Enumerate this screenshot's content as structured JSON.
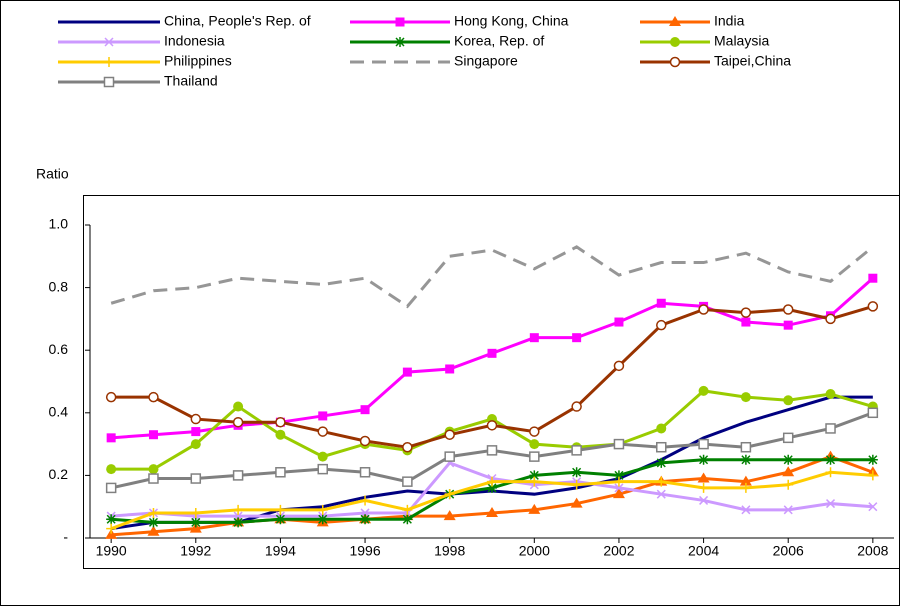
{
  "chart_data": {
    "type": "line",
    "y_label": "Ratio",
    "x": [
      1990,
      1991,
      1992,
      1993,
      1994,
      1995,
      1996,
      1997,
      1998,
      1999,
      2000,
      2001,
      2002,
      2003,
      2004,
      2005,
      2006,
      2007,
      2008
    ],
    "xlim": [
      1989.5,
      2008.5
    ],
    "xticks": [
      1990,
      1992,
      1994,
      1996,
      1998,
      2000,
      2002,
      2004,
      2006,
      2008
    ],
    "ylim": [
      0,
      1
    ],
    "yticks": [
      {
        "value": 0,
        "label": "-"
      },
      0.2,
      0.4,
      0.6,
      0.8,
      {
        "value": 1,
        "label": "1.0"
      }
    ],
    "grid": false,
    "legend": "top",
    "series": [
      {
        "name": "China, People's Rep. of",
        "color": "#000080",
        "marker": "none",
        "values": [
          0.03,
          0.05,
          0.05,
          0.05,
          0.09,
          0.1,
          0.13,
          0.15,
          0.14,
          0.15,
          0.14,
          0.16,
          0.19,
          0.25,
          0.32,
          0.37,
          0.41,
          0.45,
          0.45
        ]
      },
      {
        "name": "Hong Kong, China",
        "color": "#ff00ff",
        "marker": "square",
        "values": [
          0.32,
          0.33,
          0.34,
          0.36,
          0.37,
          0.39,
          0.41,
          0.53,
          0.54,
          0.59,
          0.64,
          0.64,
          0.69,
          0.75,
          0.74,
          0.69,
          0.68,
          0.71,
          0.83
        ]
      },
      {
        "name": "India",
        "color": "#ff6600",
        "marker": "triangle",
        "values": [
          0.01,
          0.02,
          0.03,
          0.05,
          0.06,
          0.05,
          0.06,
          0.07,
          0.07,
          0.08,
          0.09,
          0.11,
          0.14,
          0.18,
          0.19,
          0.18,
          0.21,
          0.26,
          0.21
        ]
      },
      {
        "name": "Indonesia",
        "color": "#cc99ff",
        "marker": "x",
        "values": [
          0.07,
          0.08,
          0.07,
          0.07,
          0.07,
          0.07,
          0.08,
          0.08,
          0.24,
          0.19,
          0.17,
          0.18,
          0.16,
          0.14,
          0.12,
          0.09,
          0.09,
          0.11,
          0.1
        ]
      },
      {
        "name": "Korea, Rep. of",
        "color": "#008000",
        "marker": "star",
        "values": [
          0.06,
          0.05,
          0.05,
          0.05,
          0.06,
          0.06,
          0.06,
          0.06,
          0.14,
          0.16,
          0.2,
          0.21,
          0.2,
          0.24,
          0.25,
          0.25,
          0.25,
          0.25,
          0.25
        ]
      },
      {
        "name": "Malaysia",
        "color": "#99cc00",
        "marker": "circle",
        "values": [
          0.22,
          0.22,
          0.3,
          0.42,
          0.33,
          0.26,
          0.3,
          0.28,
          0.34,
          0.38,
          0.3,
          0.29,
          0.3,
          0.35,
          0.47,
          0.45,
          0.44,
          0.46,
          0.42
        ]
      },
      {
        "name": "Philippines",
        "color": "#ffcc00",
        "marker": "plus",
        "values": [
          0.03,
          0.08,
          0.08,
          0.09,
          0.09,
          0.09,
          0.12,
          0.09,
          0.14,
          0.18,
          0.18,
          0.17,
          0.18,
          0.18,
          0.16,
          0.16,
          0.17,
          0.21,
          0.2
        ]
      },
      {
        "name": "Singapore",
        "color": "#969696",
        "marker": "none",
        "dash": true,
        "values": [
          0.75,
          0.79,
          0.8,
          0.83,
          0.82,
          0.81,
          0.83,
          0.74,
          0.9,
          0.92,
          0.86,
          0.93,
          0.84,
          0.88,
          0.88,
          0.91,
          0.85,
          0.82,
          0.93
        ]
      },
      {
        "name": "Taipei,China",
        "color": "#993300",
        "marker": "open-circle",
        "values": [
          0.45,
          0.45,
          0.38,
          0.37,
          0.37,
          0.34,
          0.31,
          0.29,
          0.33,
          0.36,
          0.34,
          0.42,
          0.55,
          0.68,
          0.73,
          0.72,
          0.73,
          0.7,
          0.74
        ]
      },
      {
        "name": "Thailand",
        "color": "#808080",
        "marker": "open-square",
        "values": [
          0.16,
          0.19,
          0.19,
          0.2,
          0.21,
          0.22,
          0.21,
          0.18,
          0.26,
          0.28,
          0.26,
          0.28,
          0.3,
          0.29,
          0.3,
          0.29,
          0.32,
          0.35,
          0.4
        ]
      }
    ]
  }
}
